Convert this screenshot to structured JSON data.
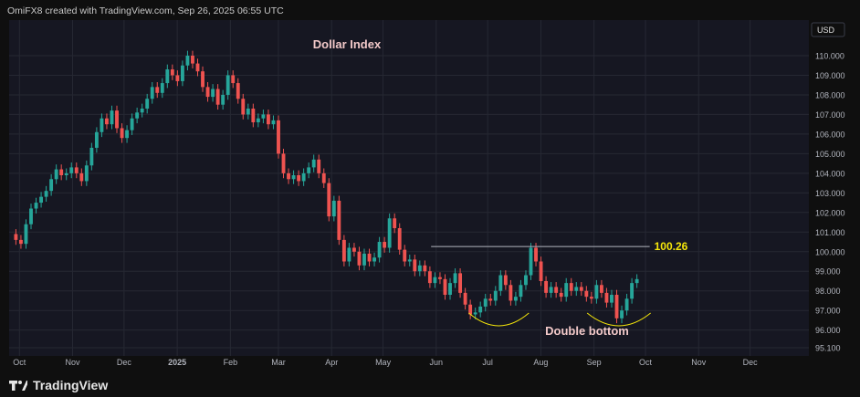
{
  "header": {
    "attribution": "OmiFX8 created with TradingView.com, Sep 26, 2025 06:55 UTC"
  },
  "brand": {
    "name": "TradingView",
    "icon": "tradingview-logo-icon"
  },
  "colors": {
    "background": "#0f0f0f",
    "plot_background": "#161722",
    "up_candle": "#26a69a",
    "down_candle": "#ef5350",
    "grid": "#262833",
    "resistance_line": "#b2b5be",
    "annotation_yellow": "#f5e60a",
    "title_text": "#f2c9c9",
    "axis_text": "#b2b5be"
  },
  "chart_data": {
    "type": "candlestick",
    "title": "Dollar Index",
    "currency": "USD",
    "x_axis": {
      "ticks": [
        "Oct",
        "Nov",
        "Dec",
        "2025",
        "Feb",
        "Mar",
        "Apr",
        "May",
        "Jun",
        "Jul",
        "Aug",
        "Sep",
        "Oct",
        "Nov",
        "Dec"
      ],
      "range": [
        "2024-09-25",
        "2025-12-31"
      ]
    },
    "y_axis": {
      "ticks": [
        "110.000",
        "109.000",
        "108.000",
        "107.000",
        "106.000",
        "105.000",
        "104.000",
        "103.000",
        "102.000",
        "101.000",
        "100.000",
        "99.000",
        "98.000",
        "97.000",
        "96.000",
        "95.100"
      ],
      "range": [
        95.0,
        111.5
      ],
      "position": "right"
    },
    "grid": true,
    "series": [
      {
        "close": [
          100.9,
          100.6,
          100.4,
          101.4,
          102.2,
          102.5,
          102.8,
          103.1,
          103.7,
          104.2,
          103.9,
          104.0,
          104.3,
          104.0,
          103.6,
          104.4,
          105.3,
          106.1,
          106.8,
          106.5,
          107.2,
          106.3,
          105.8,
          106.2,
          106.8,
          107.1,
          107.3,
          107.8,
          108.4,
          108.1,
          108.6,
          109.3,
          109.0,
          108.7,
          109.5,
          110.0,
          109.6,
          109.2,
          108.4,
          107.9,
          108.3,
          107.5,
          108.0,
          109.0,
          108.6,
          107.8,
          107.0,
          107.3,
          106.6,
          106.8,
          107.0,
          106.5,
          106.7,
          105.0,
          104.0,
          103.7,
          103.9,
          103.6,
          104.0,
          104.3,
          104.7,
          104.0,
          103.5,
          101.8,
          102.6,
          100.6,
          99.5,
          100.2,
          100.0,
          99.3,
          99.9,
          99.5,
          99.7,
          100.5,
          100.2,
          101.7,
          101.2,
          100.1,
          99.5,
          99.6,
          99.0,
          99.3,
          99.0,
          98.4,
          98.7,
          98.6,
          97.8,
          98.4,
          98.9,
          97.9,
          97.3,
          96.8,
          96.9,
          97.2,
          97.6,
          97.5,
          98.0,
          98.8,
          98.3,
          97.5,
          97.7,
          98.3,
          98.8,
          100.2,
          99.5,
          98.5,
          97.9,
          98.2,
          97.9,
          97.7,
          98.4,
          98.0,
          98.2,
          98.0,
          97.7,
          97.6,
          98.3,
          97.9,
          97.4,
          97.8,
          96.6,
          97.0,
          97.6,
          98.4,
          98.6
        ],
        "x_range": [
          "2024-09-26",
          "2025-09-26"
        ]
      }
    ],
    "annotations": [
      {
        "type": "horizontal_line",
        "value": 100.26,
        "from": "2025-05-29",
        "to": "2025-09-26",
        "label": "100.26"
      },
      {
        "type": "arc",
        "from": "2025-06-20",
        "to": "2025-07-25",
        "label": ""
      },
      {
        "type": "arc",
        "from": "2025-08-28",
        "to": "2025-10-04",
        "label": ""
      },
      {
        "type": "text",
        "label": "Double bottom"
      }
    ]
  }
}
